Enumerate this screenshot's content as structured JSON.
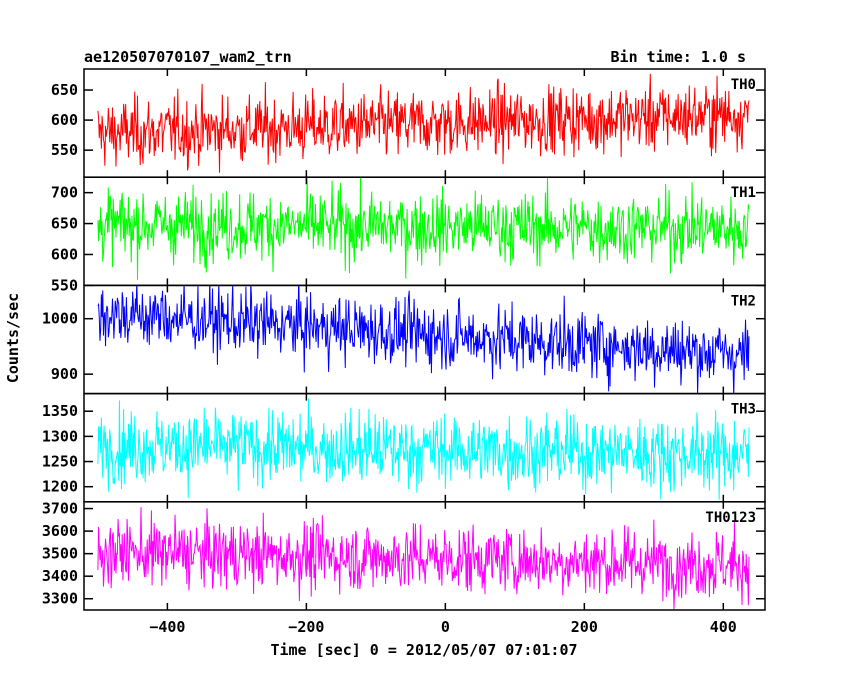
{
  "header": {
    "left_title": "ae120507070107_wam2_trn",
    "right_title": "Bin time: 1.0 s"
  },
  "chart_data": {
    "type": "line",
    "title": "ae120507070107_wam2_trn",
    "subtitle": "Bin time: 1.0 s",
    "xlabel": "Time [sec] 0 = 2012/05/07 07:01:07",
    "ylabel": "Counts/sec",
    "xlim": [
      -520,
      460
    ],
    "x_start": -500,
    "x_end": 437,
    "x_step": 1,
    "x_ticks": [
      -400,
      -200,
      0,
      200,
      400
    ],
    "x_tick_labels": [
      "−400",
      "−200",
      "0",
      "200",
      "400"
    ],
    "grid": false,
    "panels": [
      {
        "name": "TH0",
        "color": "#ff0000",
        "ylim": [
          505,
          685
        ],
        "yticks": [
          550,
          600,
          650
        ],
        "ytick_labels": [
          "550",
          "600",
          "650"
        ],
        "trend_start": 578,
        "trend_end": 610,
        "noise_sd": 28
      },
      {
        "name": "TH1",
        "color": "#00ff00",
        "ylim": [
          550,
          725
        ],
        "yticks": [
          550,
          600,
          650,
          700
        ],
        "ytick_labels": [
          "550",
          "600",
          "650",
          "700"
        ],
        "trend_start": 648,
        "trend_end": 642,
        "noise_sd": 28
      },
      {
        "name": "TH2",
        "color": "#0000ff",
        "ylim": [
          865,
          1060
        ],
        "yticks": [
          900,
          1000
        ],
        "ytick_labels": [
          "900",
          "1000"
        ],
        "trend_start": 1010,
        "trend_end": 935,
        "noise_sd": 30
      },
      {
        "name": "TH3",
        "color": "#00ffff",
        "ylim": [
          1170,
          1385
        ],
        "yticks": [
          1200,
          1250,
          1300,
          1350
        ],
        "ytick_labels": [
          "1200",
          "1250",
          "1300",
          "1350"
        ],
        "trend_start": 1282,
        "trend_end": 1265,
        "noise_sd": 36
      },
      {
        "name": "TH0123",
        "color": "#ff00ff",
        "ylim": [
          3250,
          3730
        ],
        "yticks": [
          3300,
          3400,
          3500,
          3600,
          3700
        ],
        "ytick_labels": [
          "3300",
          "3400",
          "3500",
          "3600",
          "3700"
        ],
        "trend_start": 3510,
        "trend_end": 3450,
        "noise_sd": 75
      }
    ]
  }
}
